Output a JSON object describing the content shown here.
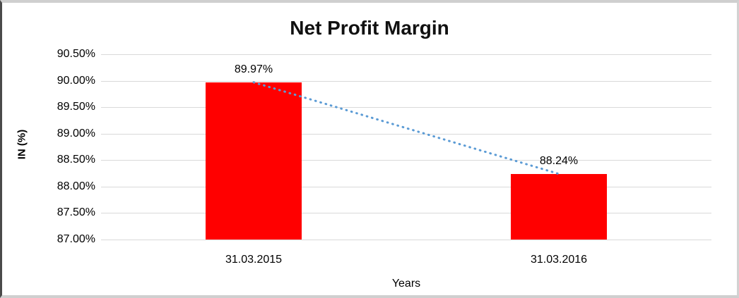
{
  "chart_data": {
    "type": "bar",
    "title": "Net Profit Margin",
    "categories": [
      "31.03.2015",
      "31.03.2016"
    ],
    "values": [
      89.97,
      88.24
    ],
    "value_labels": [
      "89.97%",
      "88.24%"
    ],
    "xlabel": "Years",
    "ylabel": "IN (%)",
    "ylim": [
      87.0,
      90.5
    ],
    "yticks": [
      90.5,
      90.0,
      89.5,
      89.0,
      88.5,
      88.0,
      87.5,
      87.0
    ],
    "ytick_labels": [
      "90.50%",
      "90.00%",
      "89.50%",
      "89.00%",
      "88.50%",
      "88.00%",
      "87.50%",
      "87.00%"
    ],
    "grid": true,
    "legend_position": "none",
    "colors": {
      "bar": "#FF0000",
      "trendline": "#5B9BD5",
      "gridline": "#D9D9D9",
      "text": "#000000",
      "title": "#111111"
    },
    "trendline": {
      "type": "linear",
      "style": "dotted",
      "points": [
        89.97,
        88.24
      ]
    }
  }
}
